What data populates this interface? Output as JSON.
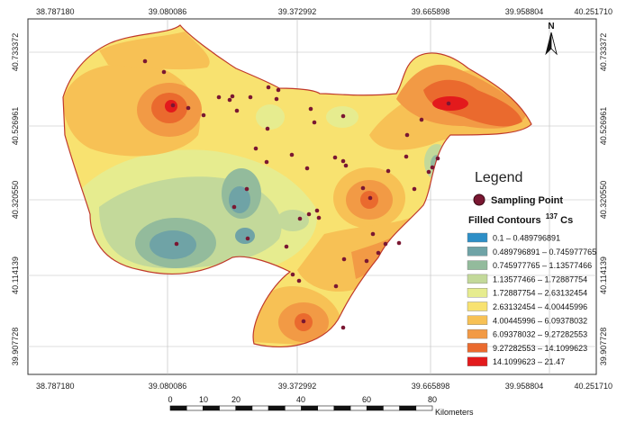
{
  "x_ticks": [
    "38.787180",
    "39.080086",
    "39.372992",
    "39.665898",
    "39.958804",
    "40.251710"
  ],
  "y_ticks": [
    "40.733372",
    "40.526961",
    "40.320550",
    "40.114139",
    "39.907728"
  ],
  "north_arrow": {
    "letter": "N"
  },
  "legend": {
    "title": "Legend",
    "sampling_point_label": "Sampling Point",
    "contours_title": "Filled Contours",
    "contours_sup": "137",
    "contours_suffix": "Cs",
    "classes": [
      {
        "label": "0.1 – 0.489796891",
        "color": "#2e8fc7"
      },
      {
        "label": "0.489796891 – 0.745977765",
        "color": "#6fa3a6"
      },
      {
        "label": "0.745977765 – 1.13577466",
        "color": "#93bb9c"
      },
      {
        "label": "1.13577466 – 1.72887754",
        "color": "#c3d99a"
      },
      {
        "label": "1.72887754 – 2.63132454",
        "color": "#e6ec8f"
      },
      {
        "label": "2.63132454 – 4.00445996",
        "color": "#f8e270"
      },
      {
        "label": "4.00445996 – 6.09378032",
        "color": "#f7c155"
      },
      {
        "label": "6.09378032 – 9.27282553",
        "color": "#f29a45"
      },
      {
        "label": "9.27282553 – 14.1099623",
        "color": "#ea6a2e"
      },
      {
        "label": "14.1099623 – 21.47",
        "color": "#e31a1c"
      }
    ]
  },
  "scale_bar": {
    "labels": [
      "0",
      "10",
      "20",
      "40",
      "60",
      "80"
    ],
    "unit": "Kilometers"
  },
  "colors": {
    "boundary": "#c0392b",
    "sampling_point": "#7a1732",
    "background": "#ffffff"
  }
}
